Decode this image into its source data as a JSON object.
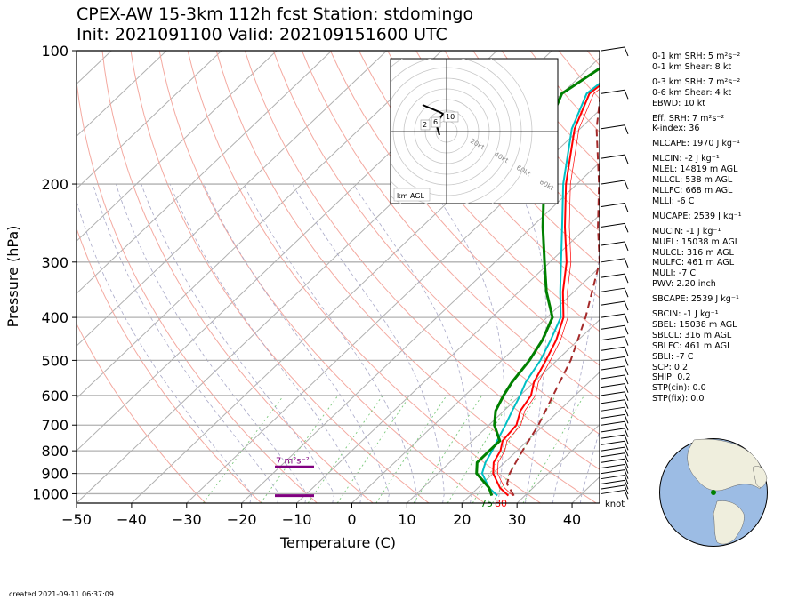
{
  "header": {
    "title_line1": "CPEX-AW 15-3km  112h fcst  Station: stdomingo",
    "title_line2": "Init: 2021091100  Valid: 202109151600 UTC"
  },
  "footer": {
    "created": "created 2021-09-11 06:37:09"
  },
  "parameters": [
    "0-1 km SRH: 5 m²s⁻²",
    "0-1 km Shear: 8 kt",
    "0-3 km SRH: 7 m²s⁻²",
    "0-6 km Shear: 4 kt",
    "EBWD: 10 kt",
    "Eff. SRH: 7 m²s⁻²",
    "K-index: 36",
    "MLCAPE: 1970 J kg⁻¹",
    "MLCIN: -2 J kg⁻¹",
    "MLEL: 14819 m AGL",
    "MLLCL: 538 m AGL",
    "MLLFC: 668 m AGL",
    "MLLI: -6 C",
    "MUCAPE: 2539 J kg⁻¹",
    "MUCIN: -1 J kg⁻¹",
    "MUEL: 15038 m AGL",
    "MULCL: 316 m AGL",
    "MULFC: 461 m AGL",
    "MULI: -7 C",
    "PWV: 2.20 inch",
    "SBCAPE: 2539 J kg⁻¹",
    "SBCIN: -1 J kg⁻¹",
    "SBEL: 15038 m AGL",
    "SBLCL: 316 m AGL",
    "SBLFC: 461 m AGL",
    "SBLI: -7 C",
    "SCP: 0.2",
    "SHIP: 0.2",
    "STP(cin): 0.0",
    "STP(fix): 0.0"
  ],
  "chart_data": [
    {
      "type": "skew-t",
      "xlabel": "Temperature (C)",
      "ylabel": "Pressure (hPa)",
      "xlim": [
        -50,
        45
      ],
      "ylim": [
        1050,
        100
      ],
      "y_scale": "log",
      "x_ticks": [
        "−50",
        "−40",
        "−30",
        "−20",
        "−10",
        "0",
        "10",
        "20",
        "30",
        "40"
      ],
      "y_ticks": [
        "100",
        "200",
        "300",
        "400",
        "500",
        "600",
        "700",
        "800",
        "900",
        "1000"
      ],
      "grid": true,
      "wind_barb_unit_label": "knot",
      "surface_dewpoint_label": "75",
      "surface_temperature_label": "80",
      "srh_annotation": "7 m²s⁻²",
      "series": [
        {
          "color": "#ff0000",
          "role": "temperature",
          "points": [
            [
              1010,
              27
            ],
            [
              970,
              24
            ],
            [
              900,
              20
            ],
            [
              850,
              18
            ],
            [
              800,
              17
            ],
            [
              760,
              15.5
            ],
            [
              700,
              15
            ],
            [
              650,
              13
            ],
            [
              600,
              12
            ],
            [
              560,
              10
            ],
            [
              500,
              8
            ],
            [
              450,
              6
            ],
            [
              400,
              3
            ],
            [
              350,
              -2
            ],
            [
              300,
              -7
            ],
            [
              250,
              -14
            ],
            [
              200,
              -22
            ],
            [
              150,
              -31
            ],
            [
              125,
              -35
            ],
            [
              110,
              -34
            ],
            [
              100,
              -31
            ]
          ]
        },
        {
          "color": "#00bfc4",
          "role": "virtual temperature",
          "points": [
            [
              1010,
              25
            ],
            [
              970,
              22
            ],
            [
              900,
              18
            ],
            [
              850,
              16.5
            ],
            [
              800,
              15.5
            ],
            [
              760,
              14.5
            ],
            [
              700,
              13
            ],
            [
              650,
              11.5
            ],
            [
              600,
              10
            ],
            [
              560,
              8.5
            ],
            [
              500,
              7
            ],
            [
              450,
              5
            ],
            [
              400,
              2.5
            ],
            [
              350,
              -2.5
            ],
            [
              300,
              -8
            ],
            [
              250,
              -14.5
            ],
            [
              200,
              -22.5
            ],
            [
              150,
              -31.5
            ],
            [
              125,
              -35.5
            ],
            [
              110,
              -34.5
            ],
            [
              100,
              -31.5
            ]
          ]
        },
        {
          "color": "#008000",
          "role": "dewpoint",
          "points": [
            [
              1010,
              24
            ],
            [
              970,
              22
            ],
            [
              900,
              17
            ],
            [
              850,
              15
            ],
            [
              800,
              15
            ],
            [
              760,
              15
            ],
            [
              700,
              11
            ],
            [
              650,
              8.5
            ],
            [
              600,
              7
            ],
            [
              560,
              6
            ],
            [
              500,
              5
            ],
            [
              450,
              3.5
            ],
            [
              400,
              1
            ],
            [
              350,
              -5
            ],
            [
              300,
              -11
            ],
            [
              250,
              -18
            ],
            [
              200,
              -26
            ],
            [
              150,
              -36
            ],
            [
              125,
              -40
            ],
            [
              110,
              -38
            ],
            [
              100,
              -36
            ]
          ]
        },
        {
          "color": "#a52a2a",
          "role": "parcel",
          "points": [
            [
              1010,
              28
            ],
            [
              950,
              24.5
            ],
            [
              900,
              23
            ],
            [
              850,
              22
            ],
            [
              800,
              21
            ],
            [
              700,
              19
            ],
            [
              600,
              16
            ],
            [
              500,
              12.5
            ],
            [
              400,
              7
            ],
            [
              300,
              -1
            ],
            [
              250,
              -8
            ],
            [
              200,
              -16
            ],
            [
              150,
              -27
            ],
            [
              125,
              -33
            ],
            [
              100,
              -40
            ]
          ]
        }
      ]
    },
    {
      "type": "hodograph",
      "unit_label": "km AGL",
      "ring_labels": [
        "20kt",
        "40kt",
        "60kt",
        "80kt"
      ],
      "height_labels": [
        "2",
        "6",
        "10"
      ]
    }
  ]
}
